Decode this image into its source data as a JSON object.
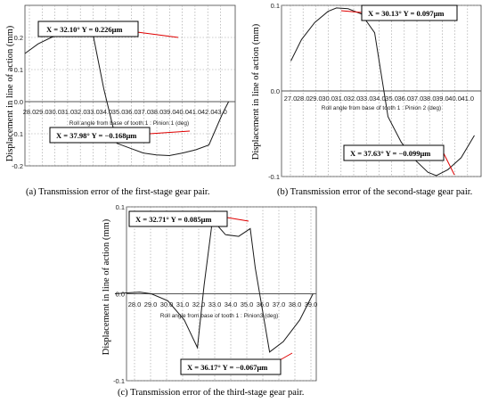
{
  "chart_data": [
    {
      "type": "line",
      "caption": "(a) Transmission error of the first-stage gear pair.",
      "ylabel": "Displacement in line of action (mm)",
      "xlabel": "Roll angle from base of tooth 1 : Pinion 1 (deg)",
      "x_ticks": [
        "28.0",
        "29.0",
        "30.0",
        "31.0",
        "32.0",
        "33.0",
        "34.0",
        "35.0",
        "36.0",
        "37.0",
        "38.0",
        "39.0",
        "40.0",
        "41.0",
        "42.0",
        "43.0"
      ],
      "y_ticks": [
        "0.2",
        "0.1",
        "0.0",
        "-0.1",
        "-0.2"
      ],
      "xlim": [
        27.0,
        43.0
      ],
      "ylim": [
        -0.2,
        0.3
      ],
      "x": [
        27.0,
        28.0,
        29.0,
        30.0,
        31.0,
        32.1,
        33.0,
        34.0,
        35.0,
        36.0,
        37.0,
        37.98,
        39.0,
        40.0,
        41.0,
        42.0,
        42.5
      ],
      "y": [
        0.15,
        0.18,
        0.2,
        0.215,
        0.222,
        0.226,
        0.04,
        -0.13,
        -0.145,
        -0.16,
        -0.166,
        -0.168,
        -0.16,
        -0.15,
        -0.135,
        -0.04,
        0.0
      ],
      "annotations": [
        {
          "text": "X = 32.10°  Y = 0.226μm",
          "x": 32.1,
          "y": 0.226
        },
        {
          "text": "X = 37.98°  Y = −0.168μm",
          "x": 37.98,
          "y": -0.168
        }
      ]
    },
    {
      "type": "line",
      "caption": "(b) Transmission error of the second-stage gear pair.",
      "ylabel": "Displacement in line of action (mm)",
      "xlabel": "Roll angle from base of tooth 1 : Pinion 2 (deg)",
      "x_ticks": [
        "27.0",
        "28.0",
        "29.0",
        "30.0",
        "31.0",
        "32.0",
        "33.0",
        "34.0",
        "35.0",
        "36.0",
        "37.0",
        "38.0",
        "39.0",
        "40.0",
        "41.0"
      ],
      "y_ticks": [
        "0.1",
        "0.0",
        "-0.1"
      ],
      "xlim": [
        26.0,
        41.0
      ],
      "ylim": [
        -0.1,
        0.1
      ],
      "x": [
        26.7,
        27.5,
        28.5,
        29.5,
        30.13,
        31.0,
        32.0,
        33.0,
        34.0,
        35.0,
        36.0,
        37.0,
        37.63,
        38.5,
        39.5,
        40.5
      ],
      "y": [
        0.035,
        0.06,
        0.08,
        0.093,
        0.097,
        0.096,
        0.09,
        0.068,
        -0.03,
        -0.06,
        -0.08,
        -0.095,
        -0.099,
        -0.092,
        -0.078,
        -0.052
      ],
      "annotations": [
        {
          "text": "X = 30.13°  Y = 0.097μm",
          "x": 30.13,
          "y": 0.097
        },
        {
          "text": "X = 37.63°  Y = −0.099μm",
          "x": 37.63,
          "y": -0.099
        }
      ]
    },
    {
      "type": "line",
      "caption": "(c) Transmission error of the third-stage gear pair.",
      "ylabel": "Displacement in line of action (mm)",
      "xlabel": "Roll angle from base of tooth 1 : Pinion3 (deg)",
      "x_ticks": [
        "28.0",
        "29.0",
        "30.0",
        "31.0",
        "32.0",
        "33.0",
        "34.0",
        "35.0",
        "36.0",
        "37.0",
        "38.0",
        "39.0"
      ],
      "y_ticks": [
        "0.1",
        "0.0",
        "-0.1"
      ],
      "xlim": [
        27.5,
        39.0
      ],
      "ylim": [
        -0.1,
        0.1
      ],
      "x": [
        26.8,
        27.5,
        28.3,
        29.0,
        30.0,
        31.0,
        31.8,
        32.2,
        32.71,
        33.5,
        34.3,
        35.0,
        35.3,
        36.17,
        37.0,
        38.0,
        38.8
      ],
      "y": [
        0.0,
        0.001,
        0.002,
        0.0,
        -0.008,
        -0.03,
        -0.062,
        0.01,
        0.085,
        0.068,
        0.066,
        0.075,
        0.03,
        -0.067,
        -0.055,
        -0.03,
        0.0
      ],
      "annotations": [
        {
          "text": "X = 32.71°  Y = 0.085μm",
          "x": 32.71,
          "y": 0.085
        },
        {
          "text": "X = 36.17°  Y = −0.067μm",
          "x": 36.17,
          "y": -0.067
        }
      ]
    }
  ]
}
